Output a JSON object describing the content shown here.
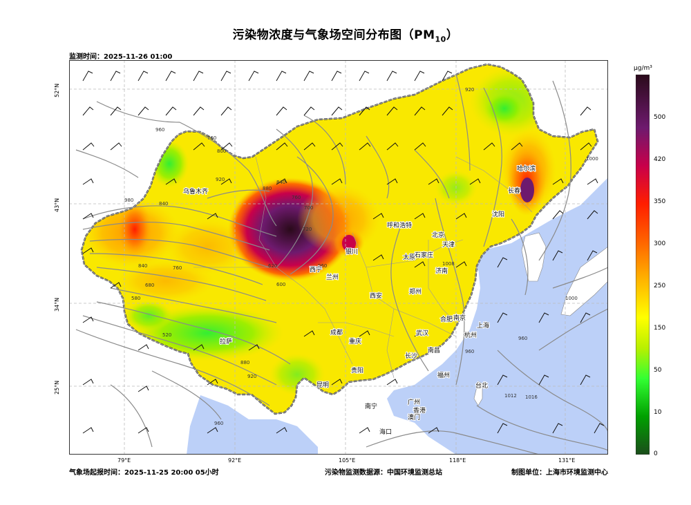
{
  "title": "污染物浓度与气象场空间分布图（PM",
  "title_sub": "10",
  "title_end": "）",
  "monitor_time": "监测时间：2025-11-26 01:00",
  "footer": {
    "forecast_time": "气象场起报时间：2025-11-25 20:00 05小时",
    "data_source": "污染物监测数据源：中国环境监测总站",
    "producer": "制图单位：上海市环境监测中心"
  },
  "colorbar": {
    "unit": "μg/m³",
    "ticks": [
      "0",
      "10",
      "50",
      "150",
      "200",
      "250",
      "300",
      "350",
      "420",
      "500"
    ],
    "colors": [
      "#1b4d1b",
      "#00a000",
      "#33ff33",
      "#b8f000",
      "#ffff00",
      "#ffb400",
      "#ff6400",
      "#ff1e00",
      "#c8004a",
      "#6e1a6e",
      "#2a0a1a"
    ]
  },
  "map": {
    "lon_labels": [
      "79°E",
      "92°E",
      "105°E",
      "118°E",
      "131°E"
    ],
    "lat_labels": [
      "52°N",
      "43°N",
      "34°N",
      "25°N"
    ],
    "contour_labels": [
      "960",
      "840",
      "760",
      "800",
      "920",
      "840",
      "880",
      "760",
      "700",
      "720",
      "600",
      "620",
      "760",
      "680",
      "580",
      "520",
      "880",
      "920",
      "960",
      "840",
      "980",
      "960",
      "1008",
      "1012",
      "1016",
      "1000",
      "1000",
      "920",
      "960",
      "960"
    ],
    "cities": [
      {
        "name": "乌鲁木齐"
      },
      {
        "name": "哈尔滨"
      },
      {
        "name": "长春"
      },
      {
        "name": "沈阳"
      },
      {
        "name": "呼和浩特"
      },
      {
        "name": "北京"
      },
      {
        "name": "天津"
      },
      {
        "name": "银川"
      },
      {
        "name": "太原"
      },
      {
        "name": "石家庄"
      },
      {
        "name": "西宁"
      },
      {
        "name": "兰州"
      },
      {
        "name": "济南"
      },
      {
        "name": "西安"
      },
      {
        "name": "郑州"
      },
      {
        "name": "合肥"
      },
      {
        "name": "南京"
      },
      {
        "name": "上海"
      },
      {
        "name": "成都"
      },
      {
        "name": "武汉"
      },
      {
        "name": "杭州"
      },
      {
        "name": "拉萨"
      },
      {
        "name": "重庆"
      },
      {
        "name": "长沙"
      },
      {
        "name": "南昌"
      },
      {
        "name": "贵阳"
      },
      {
        "name": "福州"
      },
      {
        "name": "台北"
      },
      {
        "name": "昆明"
      },
      {
        "name": "广州"
      },
      {
        "name": "南宁"
      },
      {
        "name": "香港"
      },
      {
        "name": "澳门"
      },
      {
        "name": "海口"
      }
    ]
  }
}
